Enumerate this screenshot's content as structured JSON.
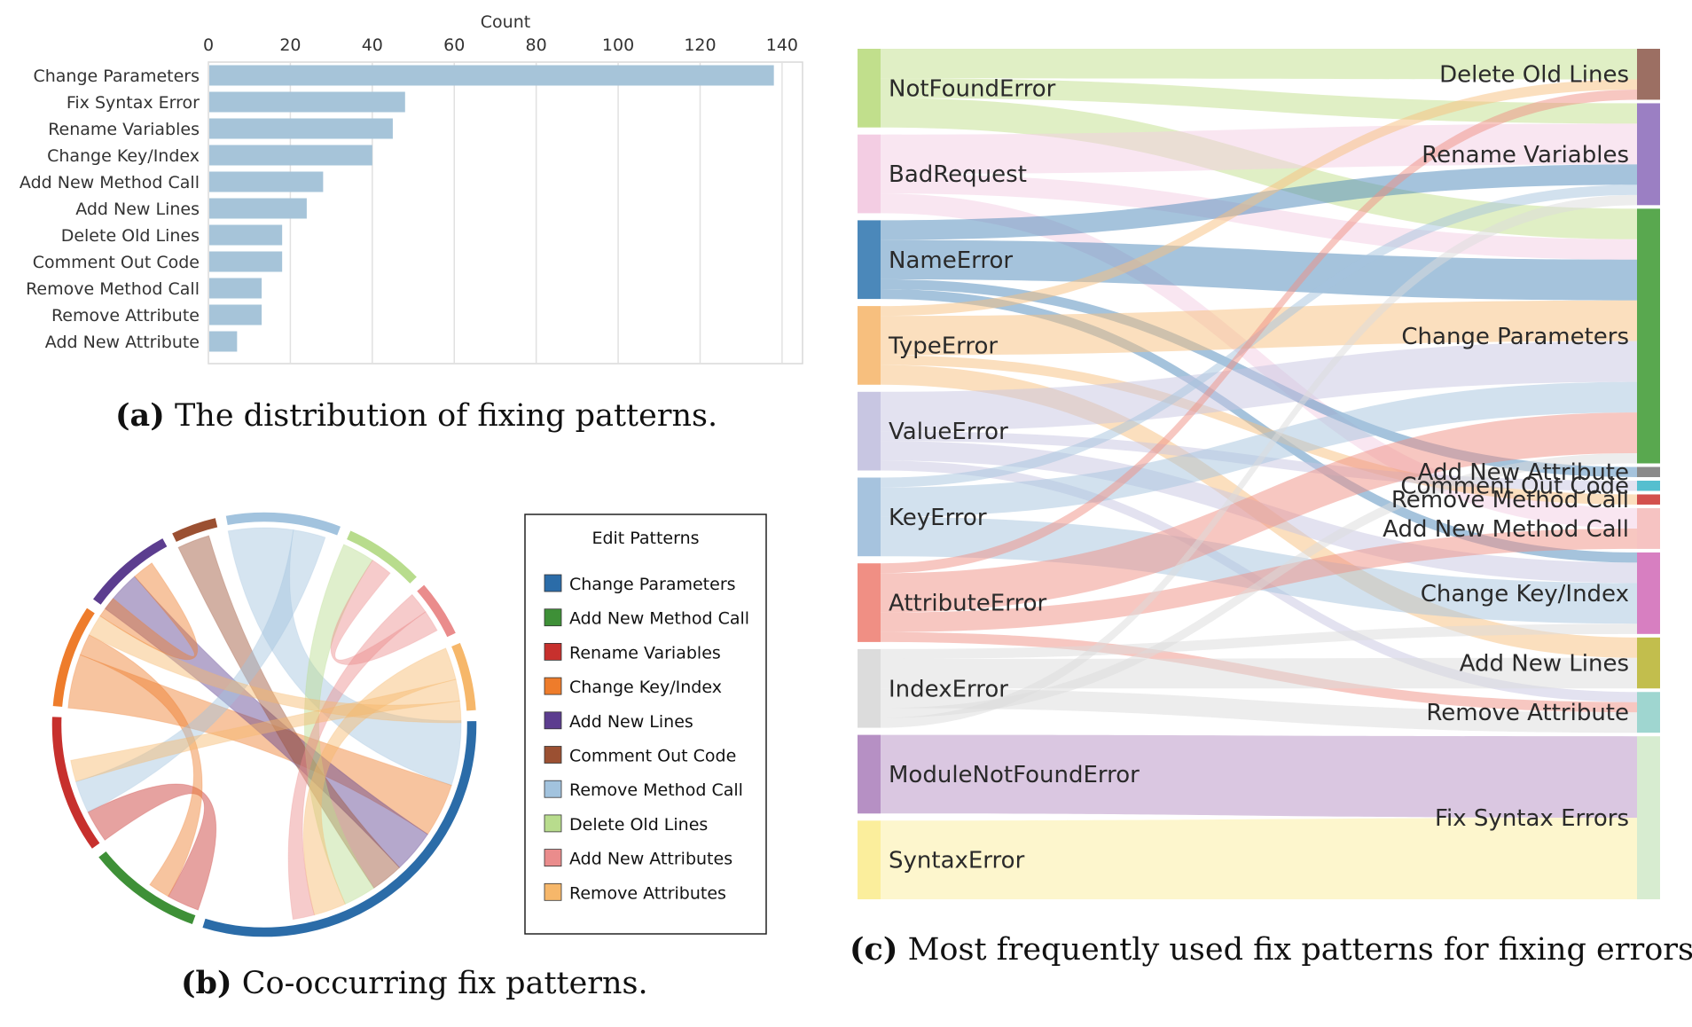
{
  "captions": {
    "a_letter": "(a)",
    "a_text": "The distribution of fixing patterns.",
    "b_letter": "(b)",
    "b_text": "Co-occurring fix patterns.",
    "c_letter": "(c)",
    "c_text": "Most frequently used fix patterns for fixing errors."
  },
  "colors": {
    "bar": "#a6c4d9",
    "sankey_sources": [
      "#c1df8c",
      "#f3cde3",
      "#4b88ba",
      "#f7bf7e",
      "#c8c6e2",
      "#a6c3de",
      "#f08f84",
      "#dcdcdc",
      "#b690c4",
      "#fbee9c"
    ],
    "sankey_targets": [
      "#9c6f63",
      "#9b7fc3",
      "#59a84f",
      "#8a8a8a",
      "#55bfcf",
      "#d3504d",
      "#f6c3c2",
      "#d77fc1",
      "#c2be4d",
      "#9fd6d0",
      "#d7ecd0"
    ]
  },
  "chart_data": [
    {
      "type": "bar",
      "orientation": "horizontal",
      "title": "",
      "xlabel": "Count",
      "ylabel": "",
      "xlim": [
        0,
        145
      ],
      "xticks": [
        0,
        20,
        40,
        60,
        80,
        100,
        120,
        140
      ],
      "grid": true,
      "categories": [
        "Change Parameters",
        "Fix Syntax Error",
        "Rename Variables",
        "Change Key/Index",
        "Add New Method Call",
        "Add New Lines",
        "Delete Old Lines",
        "Comment Out Code",
        "Remove Method Call",
        "Remove Attribute",
        "Add New Attribute"
      ],
      "values": [
        138,
        48,
        45,
        40,
        28,
        24,
        18,
        18,
        13,
        13,
        7
      ]
    },
    {
      "type": "chord",
      "legend_title": "Edit Patterns",
      "legend_position": "right",
      "categories": [
        "Change Parameters",
        "Add New Method Call",
        "Rename Variables",
        "Change Key/Index",
        "Add New Lines",
        "Comment Out Code",
        "Remove Method Call",
        "Delete Old Lines",
        "Add New Attributes",
        "Remove Attributes"
      ],
      "colors": [
        "#2b6ca8",
        "#3e9037",
        "#c7302d",
        "#ee7c2b",
        "#5c3d8f",
        "#9b5032",
        "#a2c3de",
        "#b8dc8d",
        "#ea8c8c",
        "#f6b76a"
      ],
      "group_sizes": [
        34,
        10,
        12,
        9,
        8,
        4,
        10,
        7,
        5,
        6
      ],
      "links": [
        {
          "source": "Change Parameters",
          "target": "Remove Method Call",
          "value": 6
        },
        {
          "source": "Change Parameters",
          "target": "Change Key/Index",
          "value": 5
        },
        {
          "source": "Change Parameters",
          "target": "Add New Lines",
          "value": 4
        },
        {
          "source": "Change Parameters",
          "target": "Comment Out Code",
          "value": 3
        },
        {
          "source": "Change Parameters",
          "target": "Delete Old Lines",
          "value": 3
        },
        {
          "source": "Change Parameters",
          "target": "Remove Attributes",
          "value": 3
        },
        {
          "source": "Change Parameters",
          "target": "Add New Attributes",
          "value": 2
        },
        {
          "source": "Add New Method Call",
          "target": "Rename Variables",
          "value": 3
        },
        {
          "source": "Add New Method Call",
          "target": "Change Key/Index",
          "value": 2
        },
        {
          "source": "Rename Variables",
          "target": "Remove Method Call",
          "value": 3
        },
        {
          "source": "Rename Variables",
          "target": "Remove Attributes",
          "value": 2
        },
        {
          "source": "Change Key/Index",
          "target": "Remove Attributes",
          "value": 2
        },
        {
          "source": "Add New Lines",
          "target": "Change Key/Index",
          "value": 2
        },
        {
          "source": "Delete Old Lines",
          "target": "Add New Attributes",
          "value": 2
        }
      ]
    },
    {
      "type": "sankey",
      "sources": [
        {
          "name": "NotFoundError",
          "value": 8
        },
        {
          "name": "BadRequest",
          "value": 8
        },
        {
          "name": "NameError",
          "value": 8
        },
        {
          "name": "TypeError",
          "value": 8
        },
        {
          "name": "ValueError",
          "value": 8
        },
        {
          "name": "KeyError",
          "value": 8
        },
        {
          "name": "AttributeError",
          "value": 8
        },
        {
          "name": "IndexError",
          "value": 8
        },
        {
          "name": "ModuleNotFoundError",
          "value": 8
        },
        {
          "name": "SyntaxError",
          "value": 8
        }
      ],
      "targets": [
        {
          "name": "Delete Old Lines",
          "value": 5
        },
        {
          "name": "Rename Variables",
          "value": 10
        },
        {
          "name": "Change Parameters",
          "value": 25
        },
        {
          "name": "Add New Attribute",
          "value": 1
        },
        {
          "name": "Comment Out Code",
          "value": 1
        },
        {
          "name": "Remove Method Call",
          "value": 1
        },
        {
          "name": "Add New Method Call",
          "value": 4
        },
        {
          "name": "Change Key/Index",
          "value": 8
        },
        {
          "name": "Add New Lines",
          "value": 5
        },
        {
          "name": "Remove Attribute",
          "value": 4
        },
        {
          "name": "Fix Syntax Errors",
          "value": 16
        }
      ],
      "links": [
        {
          "source": "NotFoundError",
          "target": "Delete Old Lines",
          "value": 3
        },
        {
          "source": "NotFoundError",
          "target": "Rename Variables",
          "value": 2
        },
        {
          "source": "NotFoundError",
          "target": "Change Parameters",
          "value": 3
        },
        {
          "source": "BadRequest",
          "target": "Rename Variables",
          "value": 4
        },
        {
          "source": "BadRequest",
          "target": "Change Parameters",
          "value": 2
        },
        {
          "source": "BadRequest",
          "target": "Add New Method Call",
          "value": 2
        },
        {
          "source": "NameError",
          "target": "Rename Variables",
          "value": 2
        },
        {
          "source": "NameError",
          "target": "Change Parameters",
          "value": 4
        },
        {
          "source": "NameError",
          "target": "Add New Attribute",
          "value": 1
        },
        {
          "source": "NameError",
          "target": "Change Key/Index",
          "value": 1
        },
        {
          "source": "TypeError",
          "target": "Delete Old Lines",
          "value": 1
        },
        {
          "source": "TypeError",
          "target": "Change Parameters",
          "value": 4
        },
        {
          "source": "TypeError",
          "target": "Remove Method Call",
          "value": 1
        },
        {
          "source": "TypeError",
          "target": "Add New Lines",
          "value": 2
        },
        {
          "source": "ValueError",
          "target": "Change Parameters",
          "value": 4
        },
        {
          "source": "ValueError",
          "target": "Comment Out Code",
          "value": 1
        },
        {
          "source": "ValueError",
          "target": "Change Key/Index",
          "value": 2
        },
        {
          "source": "ValueError",
          "target": "Remove Attribute",
          "value": 1
        },
        {
          "source": "KeyError",
          "target": "Rename Variables",
          "value": 1
        },
        {
          "source": "KeyError",
          "target": "Change Parameters",
          "value": 3
        },
        {
          "source": "KeyError",
          "target": "Change Key/Index",
          "value": 4
        },
        {
          "source": "AttributeError",
          "target": "Delete Old Lines",
          "value": 1
        },
        {
          "source": "AttributeError",
          "target": "Change Parameters",
          "value": 4
        },
        {
          "source": "AttributeError",
          "target": "Add New Method Call",
          "value": 2
        },
        {
          "source": "AttributeError",
          "target": "Remove Attribute",
          "value": 1
        },
        {
          "source": "IndexError",
          "target": "Change Key/Index",
          "value": 1
        },
        {
          "source": "IndexError",
          "target": "Add New Lines",
          "value": 3
        },
        {
          "source": "IndexError",
          "target": "Remove Attribute",
          "value": 2
        },
        {
          "source": "IndexError",
          "target": "Change Parameters",
          "value": 1
        },
        {
          "source": "IndexError",
          "target": "Rename Variables",
          "value": 1
        },
        {
          "source": "ModuleNotFoundError",
          "target": "Fix Syntax Errors",
          "value": 8
        },
        {
          "source": "SyntaxError",
          "target": "Fix Syntax Errors",
          "value": 8
        }
      ]
    }
  ]
}
